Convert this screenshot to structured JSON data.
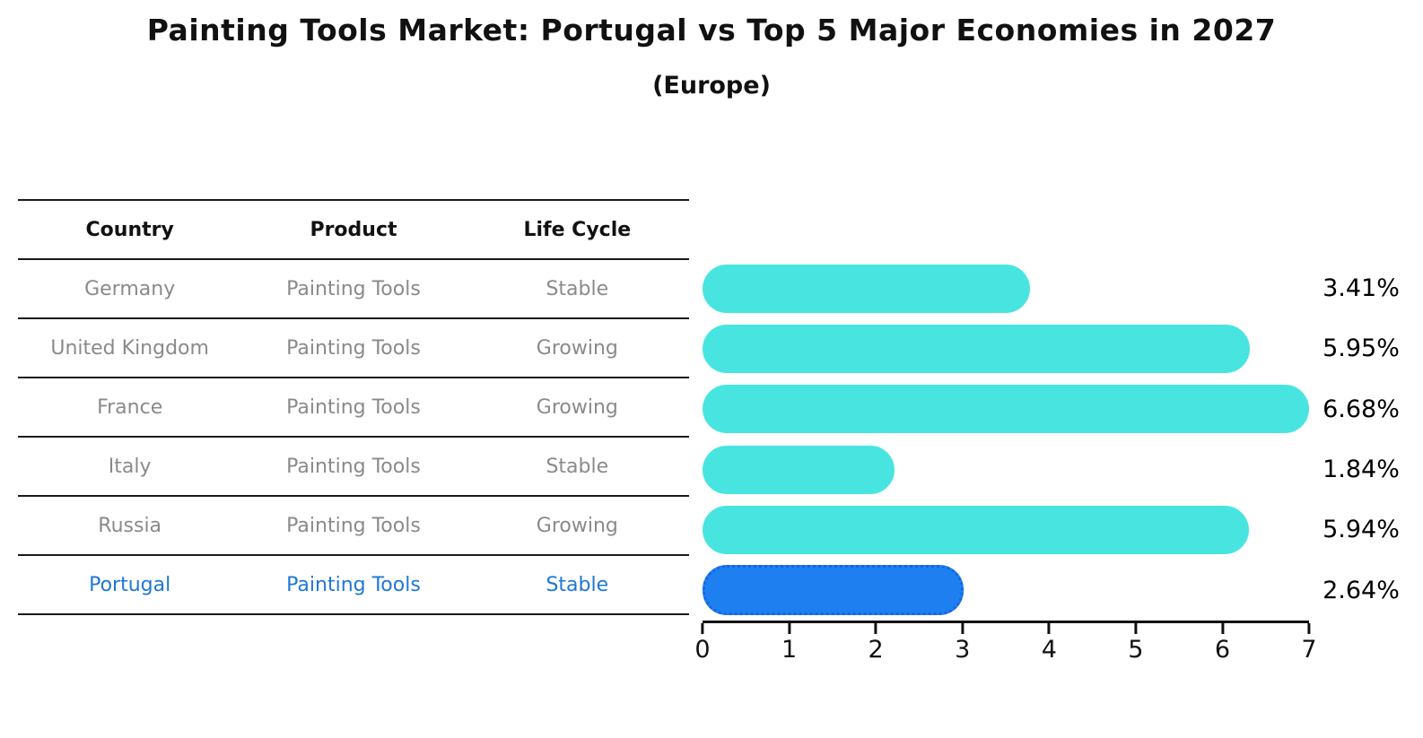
{
  "title": "Painting Tools Market: Portugal vs Top 5 Major Economies in 2027",
  "subtitle": "(Europe)",
  "table": {
    "headers": {
      "country": "Country",
      "product": "Product",
      "life_cycle": "Life Cycle"
    },
    "rows": [
      {
        "country": "Germany",
        "product": "Painting Tools",
        "life_cycle": "Stable"
      },
      {
        "country": "United Kingdom",
        "product": "Painting Tools",
        "life_cycle": "Growing"
      },
      {
        "country": "France",
        "product": "Painting Tools",
        "life_cycle": "Growing"
      },
      {
        "country": "Italy",
        "product": "Painting Tools",
        "life_cycle": "Stable"
      },
      {
        "country": "Russia",
        "product": "Painting Tools",
        "life_cycle": "Growing"
      },
      {
        "country": "Portugal",
        "product": "Painting Tools",
        "life_cycle": "Stable"
      }
    ]
  },
  "chart_data": {
    "type": "bar",
    "orientation": "horizontal",
    "title": "Painting Tools Market: Portugal vs Top 5 Major Economies in 2027 (Europe)",
    "categories": [
      "Germany",
      "United Kingdom",
      "France",
      "Italy",
      "Russia",
      "Portugal"
    ],
    "values": [
      3.41,
      5.95,
      6.68,
      1.84,
      5.94,
      2.64
    ],
    "value_labels": [
      "3.41%",
      "5.95%",
      "6.68%",
      "1.84%",
      "5.94%",
      "2.64%"
    ],
    "unit": "%",
    "xlim": [
      0,
      7
    ],
    "x_ticks": [
      0,
      1,
      2,
      3,
      4,
      5,
      6,
      7
    ],
    "grid": false,
    "legend": false,
    "highlight_index": 5,
    "bar_color": "#48E5E0",
    "highlight_bar_color": "#1E7FF0",
    "highlight_text_color": "#1f77d6"
  }
}
